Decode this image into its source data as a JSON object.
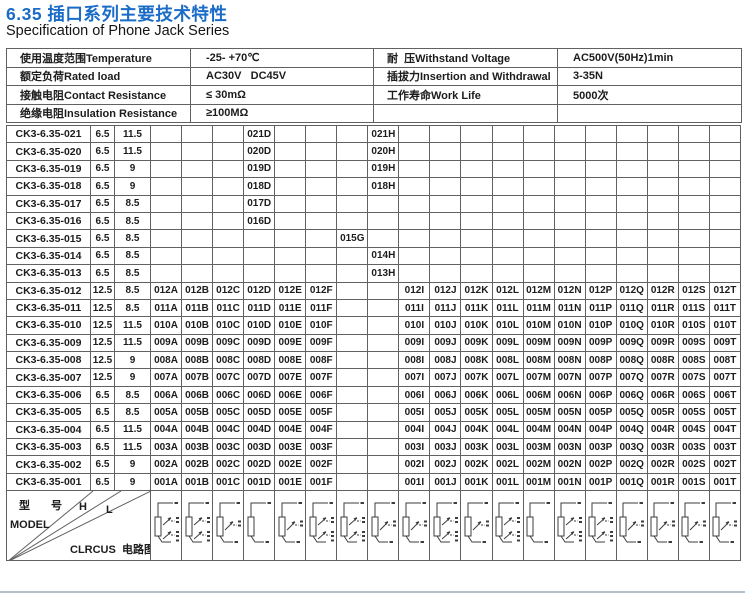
{
  "page": {
    "title": "6.35 插口系列主要技术特性",
    "subtitle": "Specification of Phone Jack Series"
  },
  "colors": {
    "title_blue": "#1a6cc7",
    "table_border": "#616161",
    "bottom_line": "#b5c2cb"
  },
  "specs": {
    "rows": [
      {
        "label": "使用温度范围Temperature",
        "value": "-25- +70℃",
        "label2": "耐  压Withstand Voltage",
        "value2": "AC500V(50Hz)1min"
      },
      {
        "label": "额定负荷Rated load",
        "value": "AC30V   DC45V",
        "label2": "插拔力Insertion and Withdrawal",
        "value2": "3-35N"
      },
      {
        "label": "接触电阻Contact Resistance",
        "value": "≤ 30mΩ",
        "label2": "工作寿命Work Life",
        "value2": "5000次"
      },
      {
        "label": "绝缘电阻Insulation Resistance",
        "value": "≥100MΩ",
        "label2": "",
        "value2": ""
      }
    ]
  },
  "table": {
    "letter_columns": [
      "A",
      "B",
      "C",
      "D",
      "E",
      "F",
      "G",
      "H",
      "I",
      "J",
      "K",
      "L",
      "M",
      "N",
      "P",
      "Q",
      "R",
      "S",
      "T"
    ],
    "rows": [
      {
        "model": "CK3-6.35-021",
        "h": "6.5",
        "l": "11.5",
        "codes": [
          "",
          "",
          "",
          "021D",
          "",
          "",
          "",
          "021H",
          "",
          "",
          "",
          "",
          "",
          "",
          "",
          "",
          "",
          "",
          ""
        ]
      },
      {
        "model": "CK3-6.35-020",
        "h": "6.5",
        "l": "11.5",
        "codes": [
          "",
          "",
          "",
          "020D",
          "",
          "",
          "",
          "020H",
          "",
          "",
          "",
          "",
          "",
          "",
          "",
          "",
          "",
          "",
          ""
        ]
      },
      {
        "model": "CK3-6.35-019",
        "h": "6.5",
        "l": "9",
        "codes": [
          "",
          "",
          "",
          "019D",
          "",
          "",
          "",
          "019H",
          "",
          "",
          "",
          "",
          "",
          "",
          "",
          "",
          "",
          "",
          ""
        ]
      },
      {
        "model": "CK3-6.35-018",
        "h": "6.5",
        "l": "9",
        "codes": [
          "",
          "",
          "",
          "018D",
          "",
          "",
          "",
          "018H",
          "",
          "",
          "",
          "",
          "",
          "",
          "",
          "",
          "",
          "",
          ""
        ]
      },
      {
        "model": "CK3-6.35-017",
        "h": "6.5",
        "l": "8.5",
        "codes": [
          "",
          "",
          "",
          "017D",
          "",
          "",
          "",
          "",
          "",
          "",
          "",
          "",
          "",
          "",
          "",
          "",
          "",
          "",
          ""
        ]
      },
      {
        "model": "CK3-6.35-016",
        "h": "6.5",
        "l": "8.5",
        "codes": [
          "",
          "",
          "",
          "016D",
          "",
          "",
          "",
          "",
          "",
          "",
          "",
          "",
          "",
          "",
          "",
          "",
          "",
          "",
          ""
        ]
      },
      {
        "model": "CK3-6.35-015",
        "h": "6.5",
        "l": "8.5",
        "codes": [
          "",
          "",
          "",
          "",
          "",
          "",
          "015G",
          "",
          "",
          "",
          "",
          "",
          "",
          "",
          "",
          "",
          "",
          "",
          ""
        ]
      },
      {
        "model": "CK3-6.35-014",
        "h": "6.5",
        "l": "8.5",
        "codes": [
          "",
          "",
          "",
          "",
          "",
          "",
          "",
          "014H",
          "",
          "",
          "",
          "",
          "",
          "",
          "",
          "",
          "",
          "",
          ""
        ]
      },
      {
        "model": "CK3-6.35-013",
        "h": "6.5",
        "l": "8.5",
        "codes": [
          "",
          "",
          "",
          "",
          "",
          "",
          "",
          "013H",
          "",
          "",
          "",
          "",
          "",
          "",
          "",
          "",
          "",
          "",
          ""
        ]
      },
      {
        "model": "CK3-6.35-012",
        "h": "12.5",
        "l": "8.5",
        "codes": [
          "012A",
          "012B",
          "012C",
          "012D",
          "012E",
          "012F",
          "",
          "",
          "012I",
          "012J",
          "012K",
          "012L",
          "012M",
          "012N",
          "012P",
          "012Q",
          "012R",
          "012S",
          "012T"
        ]
      },
      {
        "model": "CK3-6.35-011",
        "h": "12.5",
        "l": "8.5",
        "codes": [
          "011A",
          "011B",
          "011C",
          "011D",
          "011E",
          "011F",
          "",
          "",
          "011I",
          "011J",
          "011K",
          "011L",
          "011M",
          "011N",
          "011P",
          "011Q",
          "011R",
          "011S",
          "011T"
        ]
      },
      {
        "model": "CK3-6.35-010",
        "h": "12.5",
        "l": "11.5",
        "codes": [
          "010A",
          "010B",
          "010C",
          "010D",
          "010E",
          "010F",
          "",
          "",
          "010I",
          "010J",
          "010K",
          "010L",
          "010M",
          "010N",
          "010P",
          "010Q",
          "010R",
          "010S",
          "010T"
        ]
      },
      {
        "model": "CK3-6.35-009",
        "h": "12.5",
        "l": "11.5",
        "codes": [
          "009A",
          "009B",
          "009C",
          "009D",
          "009E",
          "009F",
          "",
          "",
          "009I",
          "009J",
          "009K",
          "009L",
          "009M",
          "009N",
          "009P",
          "009Q",
          "009R",
          "009S",
          "009T"
        ]
      },
      {
        "model": "CK3-6.35-008",
        "h": "12.5",
        "l": "9",
        "codes": [
          "008A",
          "008B",
          "008C",
          "008D",
          "008E",
          "008F",
          "",
          "",
          "008I",
          "008J",
          "008K",
          "008L",
          "008M",
          "008N",
          "008P",
          "008Q",
          "008R",
          "008S",
          "008T"
        ]
      },
      {
        "model": "CK3-6.35-007",
        "h": "12.5",
        "l": "9",
        "codes": [
          "007A",
          "007B",
          "007C",
          "007D",
          "007E",
          "007F",
          "",
          "",
          "007I",
          "007J",
          "007K",
          "007L",
          "007M",
          "007N",
          "007P",
          "007Q",
          "007R",
          "007S",
          "007T"
        ]
      },
      {
        "model": "CK3-6.35-006",
        "h": "6.5",
        "l": "8.5",
        "codes": [
          "006A",
          "006B",
          "006C",
          "006D",
          "006E",
          "006F",
          "",
          "",
          "006I",
          "006J",
          "006K",
          "006L",
          "006M",
          "006N",
          "006P",
          "006Q",
          "006R",
          "006S",
          "006T"
        ]
      },
      {
        "model": "CK3-6.35-005",
        "h": "6.5",
        "l": "8.5",
        "codes": [
          "005A",
          "005B",
          "005C",
          "005D",
          "005E",
          "005F",
          "",
          "",
          "005I",
          "005J",
          "005K",
          "005L",
          "005M",
          "005N",
          "005P",
          "005Q",
          "005R",
          "005S",
          "005T"
        ]
      },
      {
        "model": "CK3-6.35-004",
        "h": "6.5",
        "l": "11.5",
        "codes": [
          "004A",
          "004B",
          "004C",
          "004D",
          "004E",
          "004F",
          "",
          "",
          "004I",
          "004J",
          "004K",
          "004L",
          "004M",
          "004N",
          "004P",
          "004Q",
          "004R",
          "004S",
          "004T"
        ]
      },
      {
        "model": "CK3-6.35-003",
        "h": "6.5",
        "l": "11.5",
        "codes": [
          "003A",
          "003B",
          "003C",
          "003D",
          "003E",
          "003F",
          "",
          "",
          "003I",
          "003J",
          "003K",
          "003L",
          "003M",
          "003N",
          "003P",
          "003Q",
          "003R",
          "003S",
          "003T"
        ]
      },
      {
        "model": "CK3-6.35-002",
        "h": "6.5",
        "l": "9",
        "codes": [
          "002A",
          "002B",
          "002C",
          "002D",
          "002E",
          "002F",
          "",
          "",
          "002I",
          "002J",
          "002K",
          "002L",
          "002M",
          "002N",
          "002P",
          "002Q",
          "002R",
          "002S",
          "002T"
        ]
      },
      {
        "model": "CK3-6.35-001",
        "h": "6.5",
        "l": "9",
        "codes": [
          "001A",
          "001B",
          "001C",
          "001D",
          "001E",
          "001F",
          "",
          "",
          "001I",
          "001J",
          "001K",
          "001L",
          "001M",
          "001N",
          "001P",
          "001Q",
          "001R",
          "001S",
          "001T"
        ]
      }
    ]
  },
  "footer": {
    "model_label_cn": "型 号",
    "model_label_en": "MODEL",
    "h_label": "H",
    "l_label": "L",
    "circuit_label": "CLRCUS  电路图",
    "circuit_icon": "circuit-diagram-icon",
    "circuits": [
      "v3",
      "v3",
      "v2",
      "v1",
      "v2",
      "v3",
      "v3",
      "v2",
      "v2",
      "v3",
      "v2",
      "v3",
      "v1",
      "v3",
      "v3",
      "v2",
      "v2",
      "v2",
      "v2"
    ]
  }
}
